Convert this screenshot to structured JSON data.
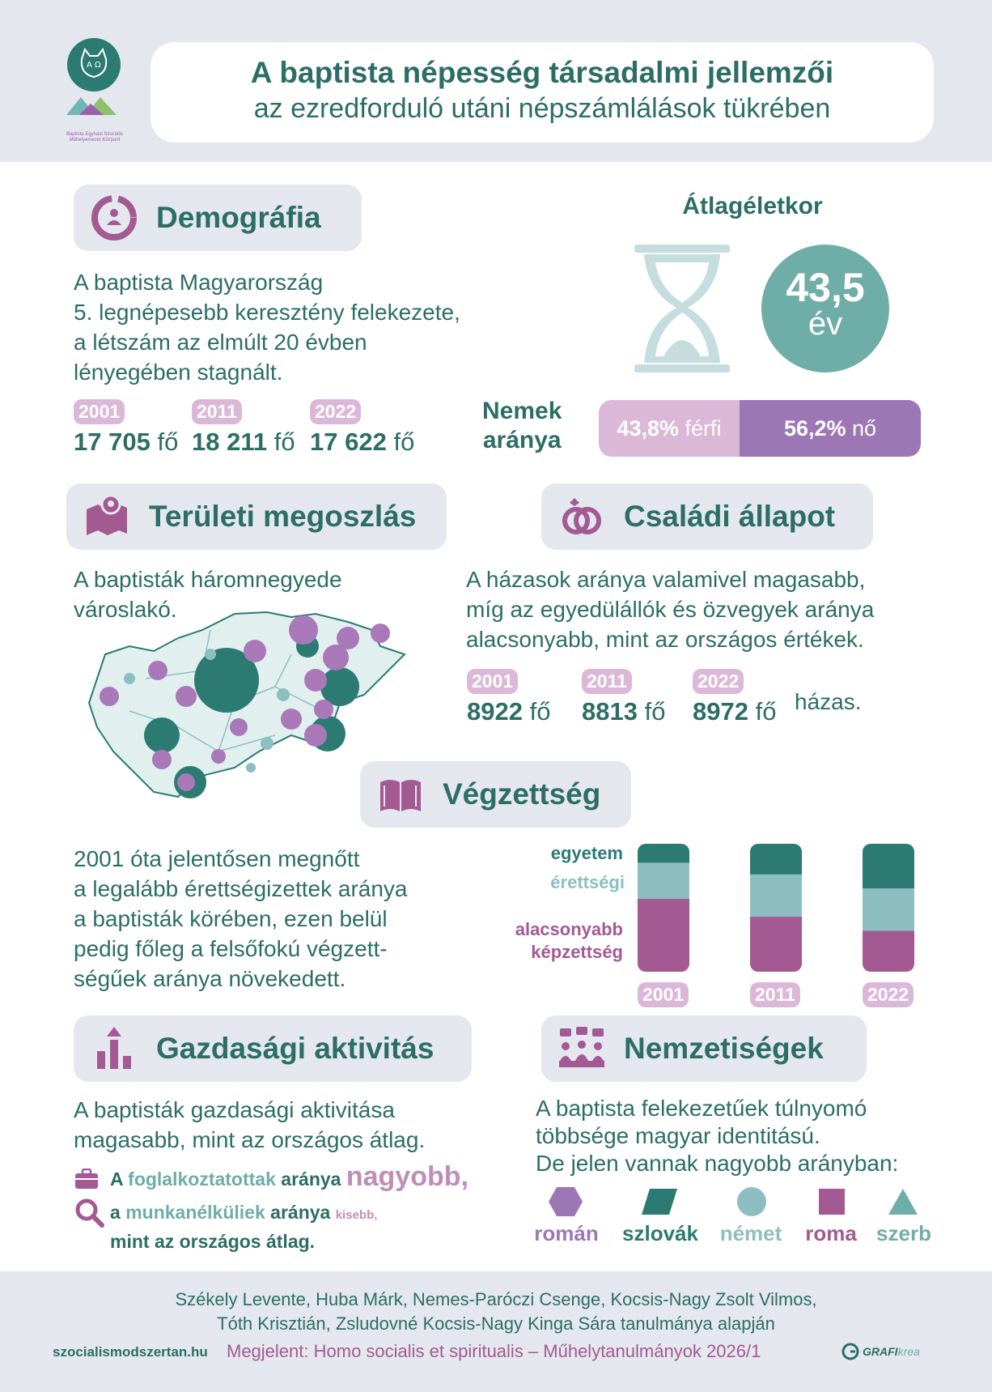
{
  "header": {
    "title": "A baptista népesség társadalmi jellemzői",
    "subtitle": "az ezredforduló utáni népszámlálások tükrében",
    "logo_text_1": "Baptista Egyházi Szociális",
    "logo_text_2": "Műhelyemezet Központ"
  },
  "demografia": {
    "heading": "Demográfia",
    "text_1": "A baptista Magyarország",
    "text_2": "5. legnépesebb keresztény felekezete,",
    "text_3": "a létszám az elmúlt 20 évben",
    "text_4": "lényegében stagnált.",
    "years": [
      {
        "year": "2001",
        "value": "17 705",
        "unit": "fő"
      },
      {
        "year": "2011",
        "value": "18 211",
        "unit": "fő"
      },
      {
        "year": "2022",
        "value": "17 622",
        "unit": "fő"
      }
    ]
  },
  "atlageletkor": {
    "heading": "Átlagéletkor",
    "value": "43,5",
    "unit": "év"
  },
  "nemek": {
    "label_1": "Nemek",
    "label_2": "aránya",
    "male_value": "43,8%",
    "male_label": "férfi",
    "female_value": "56,2%",
    "female_label": "nő",
    "male_share": 0.438
  },
  "teruleti": {
    "heading": "Területi megoszlás",
    "text_1": "A baptisták háromnegyede",
    "text_2": "városlakó."
  },
  "csaladi": {
    "heading": "Családi állapot",
    "text_1": "A házasok aránya valamivel magasabb,",
    "text_2": "míg az egyedülállók és özvegyek aránya",
    "text_3": "alacsonyabb, mint az országos értékek.",
    "years": [
      {
        "year": "2001",
        "value": "8922",
        "unit": "fő"
      },
      {
        "year": "2011",
        "value": "8813",
        "unit": "fő"
      },
      {
        "year": "2022",
        "value": "8972",
        "unit": "fő"
      }
    ],
    "suffix": "házas."
  },
  "vegzettseg": {
    "heading": "Végzettség",
    "text_1": "2001 óta jelentősen megnőtt",
    "text_2": "a legalább érettségizettek aránya",
    "text_3": "a baptisták körében, ezen belül",
    "text_4": "pedig főleg a felsőfokú végzett-",
    "text_5": "ségűek aránya növekedett.",
    "legend_egyetem": "egyetem",
    "legend_erettsegi": "érettségi",
    "legend_alacsony_1": "alacsonyabb",
    "legend_alacsony_2": "képzettség",
    "bars": [
      {
        "year": "2001",
        "egyetem": 0.15,
        "erettsegi": 0.28,
        "alacsony": 0.57
      },
      {
        "year": "2011",
        "egyetem": 0.24,
        "erettsegi": 0.33,
        "alacsony": 0.43
      },
      {
        "year": "2022",
        "egyetem": 0.35,
        "erettsegi": 0.33,
        "alacsony": 0.32
      }
    ],
    "colors": {
      "egyetem": "#2b7b73",
      "erettsegi": "#8dbfc2",
      "alacsony": "#a35a93"
    }
  },
  "gazdasagi": {
    "heading": "Gazdasági aktivitás",
    "text_1": "A baptisták gazdasági aktivitása",
    "text_2": "magasabb, mint az országos átlag.",
    "l1_a": "A",
    "l1_b": "foglalkoztatottak",
    "l1_c": "aránya",
    "l1_d": "nagyobb,",
    "l2_a": "a",
    "l2_b": "munkanélküliek",
    "l2_c": "aránya",
    "l2_d": "kisebb,",
    "l3": "mint az országos átlag."
  },
  "nemzetisegek": {
    "heading": "Nemzetiségek",
    "text_1": "A baptista felekezetűek túlnyomó",
    "text_2": "többsége magyar identitású.",
    "text_3": "De jelen vannak nagyobb arányban:",
    "items": [
      {
        "label": "román",
        "shape": "hexagon",
        "color": "#9d77b5"
      },
      {
        "label": "szlovák",
        "shape": "parallelogram",
        "color": "#2b7b73"
      },
      {
        "label": "német",
        "shape": "circle",
        "color": "#8dbfc2"
      },
      {
        "label": "roma",
        "shape": "square",
        "color": "#a35a93"
      },
      {
        "label": "szerb",
        "shape": "triangle",
        "color": "#6fada8"
      }
    ]
  },
  "footer": {
    "authors_1": "Székely Levente, Huba Márk, Nemes-Paróczi Csenge, Kocsis-Nagy Zsolt Vilmos,",
    "authors_2": "Tóth Krisztián, Zsludovné Kocsis-Nagy Kinga Sára tanulmánya alapján",
    "site": "szocialismodszertan.hu",
    "published": "Megjelent: Homo socialis et spiritualis – Műhelytanulmányok 2026/1",
    "brand_a": "GRAFI",
    "brand_b": "krea"
  },
  "colors": {
    "teal_dark": "#2b7b73",
    "teal_text": "#2c6e66",
    "teal_light": "#6fada8",
    "purple": "#9d77b5",
    "magenta": "#a35a93",
    "pink_light": "#dcb8d8",
    "panel_gray": "#e4e7ee"
  }
}
